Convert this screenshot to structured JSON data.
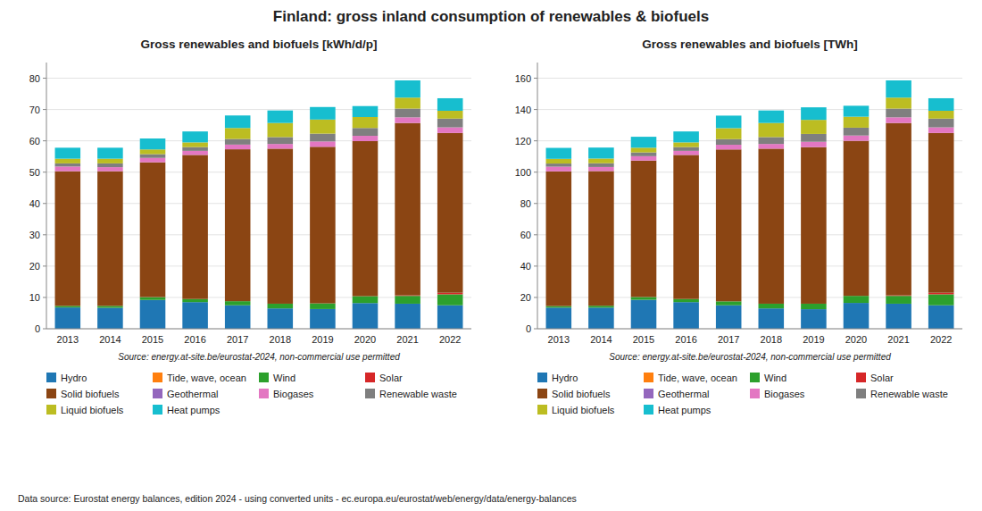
{
  "title": "Finland: gross inland consumption of renewables & biofuels",
  "annotations": [
    "Data source: Eurostat energy balances, edition 2024 - using converted units - ec.europa.eu/eurostat/web/energy/data/energy-balances"
  ],
  "chart_data": [
    {
      "type": "bar",
      "stacked": true,
      "grid": true,
      "legend": "bottom",
      "title": "Gross renewables and biofuels [kWh/d/p]",
      "annotations": [
        "Source: energy.at-site.be/eurostat-2024, non-commercial use permitted"
      ],
      "categories": [
        "2013",
        "2014",
        "2015",
        "2016",
        "2017",
        "2018",
        "2019",
        "2020",
        "2021",
        "2022"
      ],
      "ylim": [
        0,
        85
      ],
      "yticks": [
        0,
        10,
        20,
        30,
        40,
        50,
        60,
        70,
        80
      ],
      "series": [
        {
          "name": "Hydro",
          "color": "#1f77b4",
          "values": [
            6.8,
            6.7,
            9.2,
            8.5,
            7.5,
            6.5,
            6.3,
            8.2,
            8.0,
            7.5
          ]
        },
        {
          "name": "Tide, wave, ocean",
          "color": "#ff7f0e",
          "values": [
            0.0,
            0.0,
            0.0,
            0.0,
            0.0,
            0.0,
            0.0,
            0.0,
            0.0,
            0.0
          ]
        },
        {
          "name": "Wind",
          "color": "#2ca02c",
          "values": [
            0.5,
            0.6,
            0.9,
            1.0,
            1.3,
            1.5,
            1.8,
            2.2,
            2.5,
            3.5
          ]
        },
        {
          "name": "Solar",
          "color": "#d62728",
          "values": [
            0.0,
            0.0,
            0.05,
            0.0,
            0.0,
            0.0,
            0.0,
            0.0,
            0.2,
            0.5
          ]
        },
        {
          "name": "Solid biofuels",
          "color": "#8B4513",
          "values": [
            43.0,
            43.0,
            43.0,
            46.0,
            48.5,
            49.5,
            50.0,
            49.5,
            55.0,
            51.0
          ]
        },
        {
          "name": "Geothermal",
          "color": "#9467bd",
          "values": [
            0.0,
            0.0,
            0.0,
            0.0,
            0.0,
            0.0,
            0.0,
            0.0,
            0.0,
            0.0
          ]
        },
        {
          "name": "Biogases",
          "color": "#e377c2",
          "values": [
            1.5,
            1.3,
            1.4,
            1.3,
            1.5,
            1.5,
            1.7,
            1.7,
            1.8,
            1.8
          ]
        },
        {
          "name": "Renewable waste",
          "color": "#7f7f7f",
          "values": [
            1.0,
            1.2,
            1.2,
            1.2,
            1.8,
            2.2,
            2.5,
            2.5,
            2.8,
            2.8
          ]
        },
        {
          "name": "Liquid biofuels",
          "color": "#bcbd22",
          "values": [
            1.5,
            1.5,
            1.5,
            1.5,
            3.5,
            4.5,
            4.5,
            3.5,
            3.5,
            2.5
          ]
        },
        {
          "name": "Heat pumps",
          "color": "#17becf",
          "values": [
            3.5,
            3.5,
            3.5,
            3.5,
            4.0,
            4.0,
            4.0,
            3.5,
            5.5,
            4.0
          ]
        }
      ]
    },
    {
      "type": "bar",
      "stacked": true,
      "grid": true,
      "legend": "bottom",
      "title": "Gross renewables and biofuels [TWh]",
      "annotations": [
        "Source: energy.at-site.be/eurostat-2024, non-commercial use permitted"
      ],
      "categories": [
        "2013",
        "2014",
        "2015",
        "2016",
        "2017",
        "2018",
        "2019",
        "2020",
        "2021",
        "2022"
      ],
      "ylim": [
        0,
        170
      ],
      "yticks": [
        0,
        20,
        40,
        60,
        80,
        100,
        120,
        140,
        160
      ],
      "series": [
        {
          "name": "Hydro",
          "color": "#1f77b4",
          "values": [
            13.5,
            13.5,
            18.5,
            17.0,
            15.0,
            13.0,
            12.5,
            16.5,
            16.0,
            15.0
          ]
        },
        {
          "name": "Tide, wave, ocean",
          "color": "#ff7f0e",
          "values": [
            0.0,
            0.0,
            0.0,
            0.0,
            0.0,
            0.0,
            0.0,
            0.0,
            0.0,
            0.0
          ]
        },
        {
          "name": "Wind",
          "color": "#2ca02c",
          "values": [
            1.0,
            1.2,
            1.8,
            2.0,
            2.5,
            3.0,
            3.5,
            4.5,
            5.0,
            7.0
          ]
        },
        {
          "name": "Solar",
          "color": "#d62728",
          "values": [
            0.0,
            0.0,
            0.1,
            0.0,
            0.0,
            0.0,
            0.0,
            0.0,
            0.4,
            1.0
          ]
        },
        {
          "name": "Solid biofuels",
          "color": "#8B4513",
          "values": [
            86.0,
            86.0,
            87.0,
            92.0,
            97.0,
            99.0,
            100.0,
            99.0,
            110.0,
            102.0
          ]
        },
        {
          "name": "Geothermal",
          "color": "#9467bd",
          "values": [
            0.0,
            0.0,
            0.0,
            0.0,
            0.0,
            0.0,
            0.0,
            0.0,
            0.0,
            0.0
          ]
        },
        {
          "name": "Biogases",
          "color": "#e377c2",
          "values": [
            3.0,
            2.6,
            2.8,
            2.6,
            3.0,
            3.0,
            3.4,
            3.4,
            3.6,
            3.6
          ]
        },
        {
          "name": "Renewable waste",
          "color": "#7f7f7f",
          "values": [
            2.0,
            2.4,
            2.4,
            2.4,
            3.6,
            4.4,
            5.0,
            5.0,
            5.6,
            5.6
          ]
        },
        {
          "name": "Liquid biofuels",
          "color": "#bcbd22",
          "values": [
            3.0,
            3.0,
            3.0,
            3.0,
            7.0,
            9.0,
            9.0,
            7.0,
            7.0,
            5.0
          ]
        },
        {
          "name": "Heat pumps",
          "color": "#17becf",
          "values": [
            7.0,
            7.0,
            7.0,
            7.0,
            8.0,
            8.0,
            8.0,
            7.0,
            11.0,
            8.0
          ]
        }
      ]
    }
  ]
}
